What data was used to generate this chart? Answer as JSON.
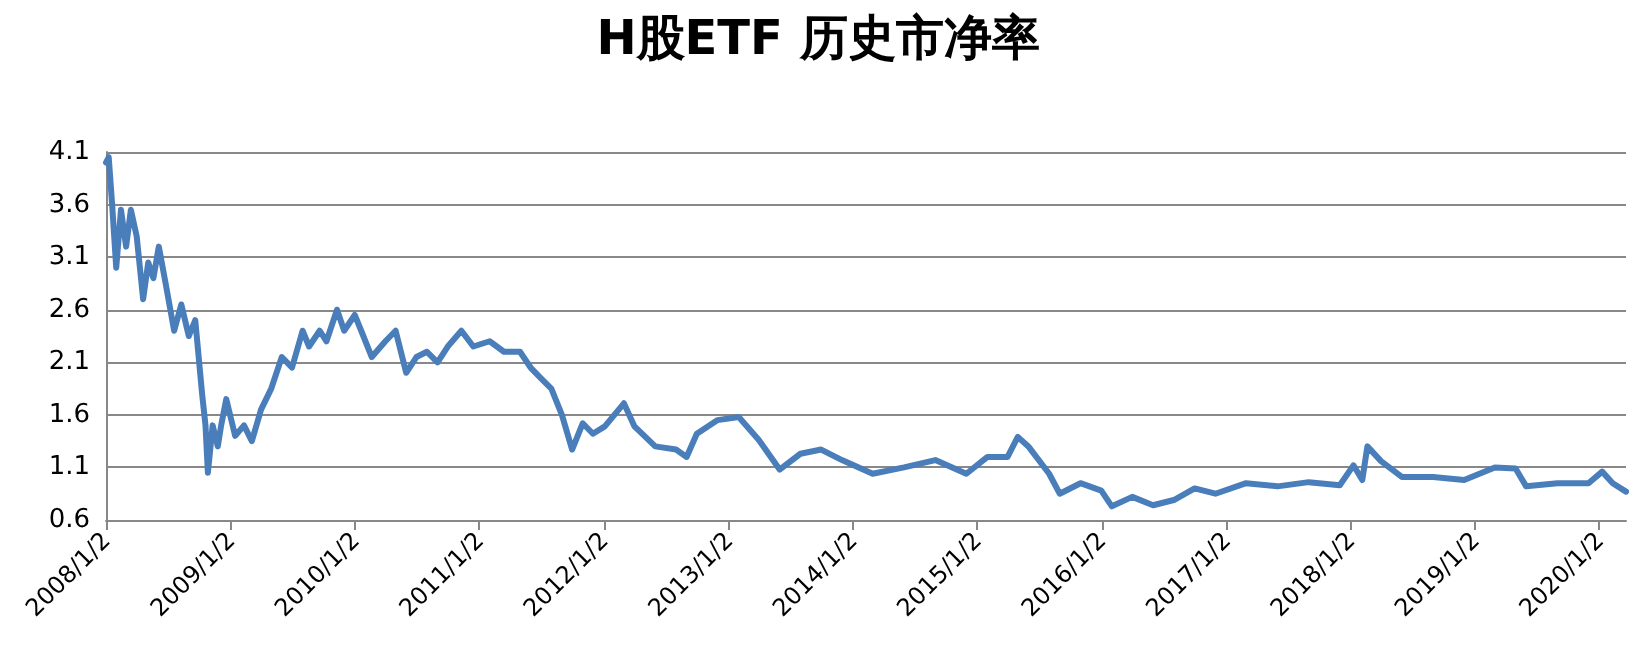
{
  "chart_data": {
    "type": "line",
    "title": "H股ETF 历史市净率",
    "x": [
      "2008-01-02",
      "2008-01-10",
      "2008-01-20",
      "2008-02-01",
      "2008-02-15",
      "2008-03-01",
      "2008-03-15",
      "2008-04-01",
      "2008-04-20",
      "2008-05-05",
      "2008-05-20",
      "2008-06-05",
      "2008-06-25",
      "2008-07-20",
      "2008-08-10",
      "2008-09-01",
      "2008-09-20",
      "2008-10-10",
      "2008-10-20",
      "2008-10-27",
      "2008-11-10",
      "2008-11-25",
      "2008-12-05",
      "2008-12-20",
      "2009-01-15",
      "2009-02-10",
      "2009-03-05",
      "2009-04-01",
      "2009-05-01",
      "2009-06-01",
      "2009-07-01",
      "2009-08-01",
      "2009-08-20",
      "2009-09-20",
      "2009-10-10",
      "2009-11-10",
      "2009-12-01",
      "2010-01-01",
      "2010-01-20",
      "2010-02-20",
      "2010-04-01",
      "2010-05-01",
      "2010-06-01",
      "2010-07-01",
      "2010-08-01",
      "2010-09-01",
      "2010-10-01",
      "2010-11-10",
      "2010-12-15",
      "2011-02-01",
      "2011-03-15",
      "2011-05-01",
      "2011-06-01",
      "2011-07-01",
      "2011-08-01",
      "2011-09-01",
      "2011-10-01",
      "2011-11-01",
      "2011-12-01",
      "2012-01-05",
      "2012-03-01",
      "2012-04-01",
      "2012-06-01",
      "2012-08-01",
      "2012-09-01",
      "2012-10-01",
      "2012-12-01",
      "2013-02-01",
      "2013-04-01",
      "2013-06-01",
      "2013-08-01",
      "2013-10-01",
      "2013-12-01",
      "2014-03-01",
      "2014-06-01",
      "2014-09-01",
      "2014-12-01",
      "2015-02-01",
      "2015-04-01",
      "2015-05-01",
      "2015-06-01",
      "2015-08-01",
      "2015-09-01",
      "2015-11-01",
      "2016-01-01",
      "2016-02-01",
      "2016-04-01",
      "2016-06-01",
      "2016-08-01",
      "2016-10-01",
      "2016-12-01",
      "2017-03-01",
      "2017-06-01",
      "2017-09-01",
      "2017-12-01",
      "2018-01-10",
      "2018-02-05",
      "2018-02-20",
      "2018-04-01",
      "2018-06-01",
      "2018-09-01",
      "2018-12-01",
      "2019-03-01",
      "2019-05-01",
      "2019-06-01",
      "2019-09-01",
      "2019-12-01",
      "2020-01-10",
      "2020-02-10",
      "2020-03-20"
    ],
    "series": [
      {
        "color": "#4a7ebb",
        "values": [
          4.0,
          4.05,
          3.6,
          3.0,
          3.55,
          3.2,
          3.55,
          3.3,
          2.7,
          3.05,
          2.9,
          3.2,
          2.85,
          2.4,
          2.65,
          2.35,
          2.5,
          1.8,
          1.5,
          1.05,
          1.5,
          1.3,
          1.5,
          1.75,
          1.4,
          1.5,
          1.35,
          1.65,
          1.85,
          2.15,
          2.05,
          2.4,
          2.25,
          2.4,
          2.3,
          2.6,
          2.4,
          2.55,
          2.4,
          2.15,
          2.3,
          2.4,
          2.0,
          2.15,
          2.2,
          2.1,
          2.25,
          2.4,
          2.25,
          2.3,
          2.2,
          2.2,
          2.05,
          1.95,
          1.85,
          1.6,
          1.27,
          1.52,
          1.42,
          1.49,
          1.71,
          1.49,
          1.3,
          1.27,
          1.2,
          1.42,
          1.55,
          1.58,
          1.36,
          1.08,
          1.23,
          1.27,
          1.17,
          1.04,
          1.1,
          1.17,
          1.04,
          1.2,
          1.2,
          1.39,
          1.3,
          1.04,
          0.85,
          0.95,
          0.88,
          0.73,
          0.82,
          0.74,
          0.79,
          0.9,
          0.85,
          0.95,
          0.92,
          0.96,
          0.93,
          1.12,
          0.98,
          1.3,
          1.16,
          1.01,
          1.01,
          0.98,
          1.1,
          1.09,
          0.92,
          0.95,
          0.95,
          1.06,
          0.95,
          0.87
        ]
      }
    ],
    "xlim": [
      "2008-01-02",
      "2020-03-20"
    ],
    "xticks": [
      {
        "value": "2008-01-02",
        "label": "2008/1/2"
      },
      {
        "value": "2009-01-02",
        "label": "2009/1/2"
      },
      {
        "value": "2010-01-02",
        "label": "2010/1/2"
      },
      {
        "value": "2011-01-02",
        "label": "2011/1/2"
      },
      {
        "value": "2012-01-02",
        "label": "2012/1/2"
      },
      {
        "value": "2013-01-02",
        "label": "2013/1/2"
      },
      {
        "value": "2014-01-02",
        "label": "2014/1/2"
      },
      {
        "value": "2015-01-02",
        "label": "2015/1/2"
      },
      {
        "value": "2016-01-02",
        "label": "2016/1/2"
      },
      {
        "value": "2017-01-02",
        "label": "2017/1/2"
      },
      {
        "value": "2018-01-02",
        "label": "2018/1/2"
      },
      {
        "value": "2019-01-02",
        "label": "2019/1/2"
      },
      {
        "value": "2020-01-02",
        "label": "2020/1/2"
      }
    ],
    "ylim": [
      0.6,
      4.1
    ],
    "yticks": [
      0.6,
      1.1,
      1.6,
      2.1,
      2.6,
      3.1,
      3.6,
      4.1
    ],
    "grid": "y",
    "marker": "none",
    "line_style": "solid"
  }
}
